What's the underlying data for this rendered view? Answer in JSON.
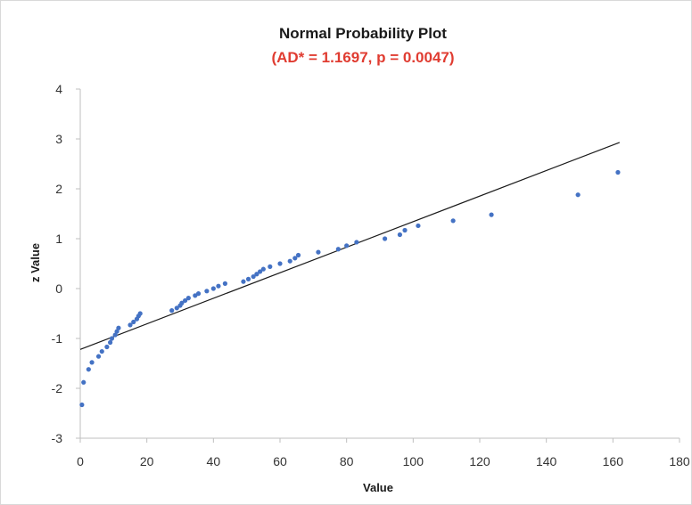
{
  "chart_data": {
    "type": "scatter",
    "title": "Normal Probability Plot",
    "subtitle": "(AD* = 1.1697, p = 0.0047)",
    "subtitle_color": "#e03c31",
    "xlabel": "Value",
    "ylabel": "z Value",
    "xlim": [
      0,
      180
    ],
    "ylim": [
      -3,
      4
    ],
    "xticks": [
      0,
      20,
      40,
      60,
      80,
      100,
      120,
      140,
      160,
      180
    ],
    "yticks": [
      -3,
      -2,
      -1,
      0,
      1,
      2,
      3,
      4
    ],
    "grid": false,
    "legend": "none",
    "point_color": "#4472c4",
    "line_color": "#1a1a1a",
    "fit_line": {
      "x": [
        0,
        162
      ],
      "y": [
        -1.22,
        2.93
      ]
    },
    "points": [
      {
        "x": 0.5,
        "y": -2.33
      },
      {
        "x": 1.0,
        "y": -1.88
      },
      {
        "x": 2.5,
        "y": -1.62
      },
      {
        "x": 3.5,
        "y": -1.48
      },
      {
        "x": 5.5,
        "y": -1.36
      },
      {
        "x": 6.5,
        "y": -1.26
      },
      {
        "x": 8.0,
        "y": -1.17
      },
      {
        "x": 9.0,
        "y": -1.08
      },
      {
        "x": 9.5,
        "y": -1.0
      },
      {
        "x": 10.5,
        "y": -0.93
      },
      {
        "x": 11.0,
        "y": -0.86
      },
      {
        "x": 11.5,
        "y": -0.79
      },
      {
        "x": 15.0,
        "y": -0.73
      },
      {
        "x": 16.0,
        "y": -0.67
      },
      {
        "x": 17.0,
        "y": -0.61
      },
      {
        "x": 17.5,
        "y": -0.55
      },
      {
        "x": 18.0,
        "y": -0.5
      },
      {
        "x": 27.5,
        "y": -0.44
      },
      {
        "x": 29.0,
        "y": -0.39
      },
      {
        "x": 30.0,
        "y": -0.34
      },
      {
        "x": 30.5,
        "y": -0.29
      },
      {
        "x": 31.5,
        "y": -0.24
      },
      {
        "x": 32.5,
        "y": -0.19
      },
      {
        "x": 34.5,
        "y": -0.14
      },
      {
        "x": 35.5,
        "y": -0.1
      },
      {
        "x": 38.0,
        "y": -0.05
      },
      {
        "x": 40.0,
        "y": 0.0
      },
      {
        "x": 41.5,
        "y": 0.05
      },
      {
        "x": 43.5,
        "y": 0.1
      },
      {
        "x": 49.0,
        "y": 0.14
      },
      {
        "x": 50.5,
        "y": 0.19
      },
      {
        "x": 52.0,
        "y": 0.24
      },
      {
        "x": 53.0,
        "y": 0.29
      },
      {
        "x": 54.0,
        "y": 0.34
      },
      {
        "x": 55.0,
        "y": 0.39
      },
      {
        "x": 57.0,
        "y": 0.44
      },
      {
        "x": 60.0,
        "y": 0.5
      },
      {
        "x": 63.0,
        "y": 0.55
      },
      {
        "x": 64.5,
        "y": 0.61
      },
      {
        "x": 65.5,
        "y": 0.67
      },
      {
        "x": 71.5,
        "y": 0.73
      },
      {
        "x": 77.5,
        "y": 0.79
      },
      {
        "x": 80.0,
        "y": 0.86
      },
      {
        "x": 83.0,
        "y": 0.93
      },
      {
        "x": 91.5,
        "y": 1.0
      },
      {
        "x": 96.0,
        "y": 1.08
      },
      {
        "x": 97.5,
        "y": 1.17
      },
      {
        "x": 101.5,
        "y": 1.26
      },
      {
        "x": 112.0,
        "y": 1.36
      },
      {
        "x": 123.5,
        "y": 1.48
      },
      {
        "x": 149.5,
        "y": 1.88
      },
      {
        "x": 161.5,
        "y": 2.33
      }
    ]
  }
}
